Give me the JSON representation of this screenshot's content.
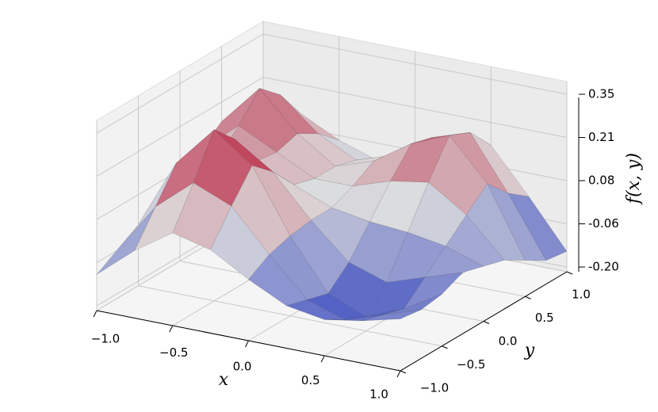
{
  "chart_data": {
    "type": "surface",
    "x_label": "x",
    "y_label": "y",
    "z_label": "f(x, y)",
    "colormap": "coolwarm",
    "x": [
      -1,
      -0.75,
      -0.5,
      -0.25,
      0,
      0.25,
      0.5,
      0.75,
      1
    ],
    "y": [
      -1,
      -0.75,
      -0.5,
      -0.25,
      0,
      0.25,
      0.5,
      0.75,
      1
    ],
    "z": [
      [
        -0.1,
        0.0,
        0.08,
        0.05,
        -0.02,
        -0.08,
        -0.1,
        -0.08,
        -0.05
      ],
      [
        -0.06,
        0.1,
        0.2,
        0.15,
        0.02,
        -0.1,
        -0.14,
        -0.1,
        -0.06
      ],
      [
        -0.02,
        0.2,
        0.33,
        0.24,
        0.04,
        -0.12,
        -0.17,
        -0.12,
        -0.05
      ],
      [
        0.0,
        0.18,
        0.26,
        0.18,
        0.05,
        -0.06,
        -0.1,
        -0.06,
        -0.02
      ],
      [
        0.04,
        0.14,
        0.15,
        0.1,
        0.05,
        0.03,
        0.02,
        0.0,
        -0.04
      ],
      [
        0.1,
        0.2,
        0.14,
        0.08,
        0.08,
        0.12,
        0.14,
        0.06,
        -0.06
      ],
      [
        0.15,
        0.28,
        0.16,
        0.08,
        0.12,
        0.2,
        0.25,
        0.12,
        -0.1
      ],
      [
        0.12,
        0.22,
        0.12,
        0.06,
        0.1,
        0.18,
        0.22,
        0.05,
        -0.14
      ],
      [
        0.06,
        0.12,
        0.06,
        0.02,
        0.06,
        0.12,
        0.14,
        0.0,
        -0.15
      ]
    ],
    "xlim": [
      -1,
      1
    ],
    "ylim": [
      -1,
      1
    ],
    "zlim": [
      -0.2,
      0.35
    ],
    "xticks": [
      {
        "value": -1,
        "label": "−1.0"
      },
      {
        "value": -0.5,
        "label": "−0.5"
      },
      {
        "value": 0,
        "label": "0.0"
      },
      {
        "value": 0.5,
        "label": "0.5"
      },
      {
        "value": 1,
        "label": "1.0"
      }
    ],
    "yticks": [
      {
        "value": -1,
        "label": "−1.0"
      },
      {
        "value": -0.5,
        "label": "−0.5"
      },
      {
        "value": 0,
        "label": "0.0"
      },
      {
        "value": 0.5,
        "label": "0.5"
      },
      {
        "value": 1,
        "label": "1.0"
      }
    ],
    "zticks": [
      {
        "value": -0.2,
        "label": "-0.20"
      },
      {
        "value": -0.0625,
        "label": "-0.06"
      },
      {
        "value": 0.075,
        "label": "0.08"
      },
      {
        "value": 0.2125,
        "label": "0.21"
      },
      0.35
    ],
    "grid": true
  }
}
